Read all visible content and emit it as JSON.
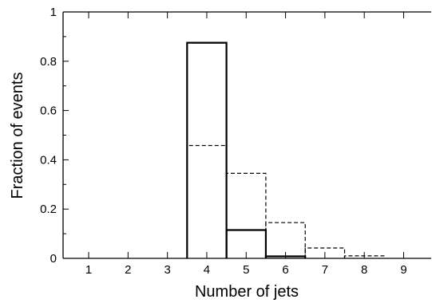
{
  "chart_data": {
    "type": "bar",
    "title": "",
    "xlabel": "Number of jets",
    "ylabel": "Fraction of events",
    "categories": [
      "1",
      "2",
      "3",
      "4",
      "5",
      "6",
      "7",
      "8",
      "9"
    ],
    "xlim": [
      0.35,
      9.7
    ],
    "ylim": [
      0,
      1
    ],
    "x_ticks": [
      1,
      2,
      3,
      4,
      5,
      6,
      7,
      8,
      9
    ],
    "y_ticks": [
      0,
      0.2,
      0.4,
      0.6,
      0.8,
      1
    ],
    "y_tick_labels": [
      "0",
      "0.2",
      "0.4",
      "0.6",
      "0.8",
      "1"
    ],
    "grid": false,
    "legend": "none",
    "series": [
      {
        "style": "solid",
        "color": "#000000",
        "values": [
          0,
          0,
          0,
          0.875,
          0.115,
          0.008,
          0,
          0,
          0
        ]
      },
      {
        "style": "dashed",
        "color": "#000000",
        "values": [
          0,
          0,
          0,
          0.458,
          0.345,
          0.145,
          0.042,
          0.01,
          0
        ]
      }
    ]
  }
}
